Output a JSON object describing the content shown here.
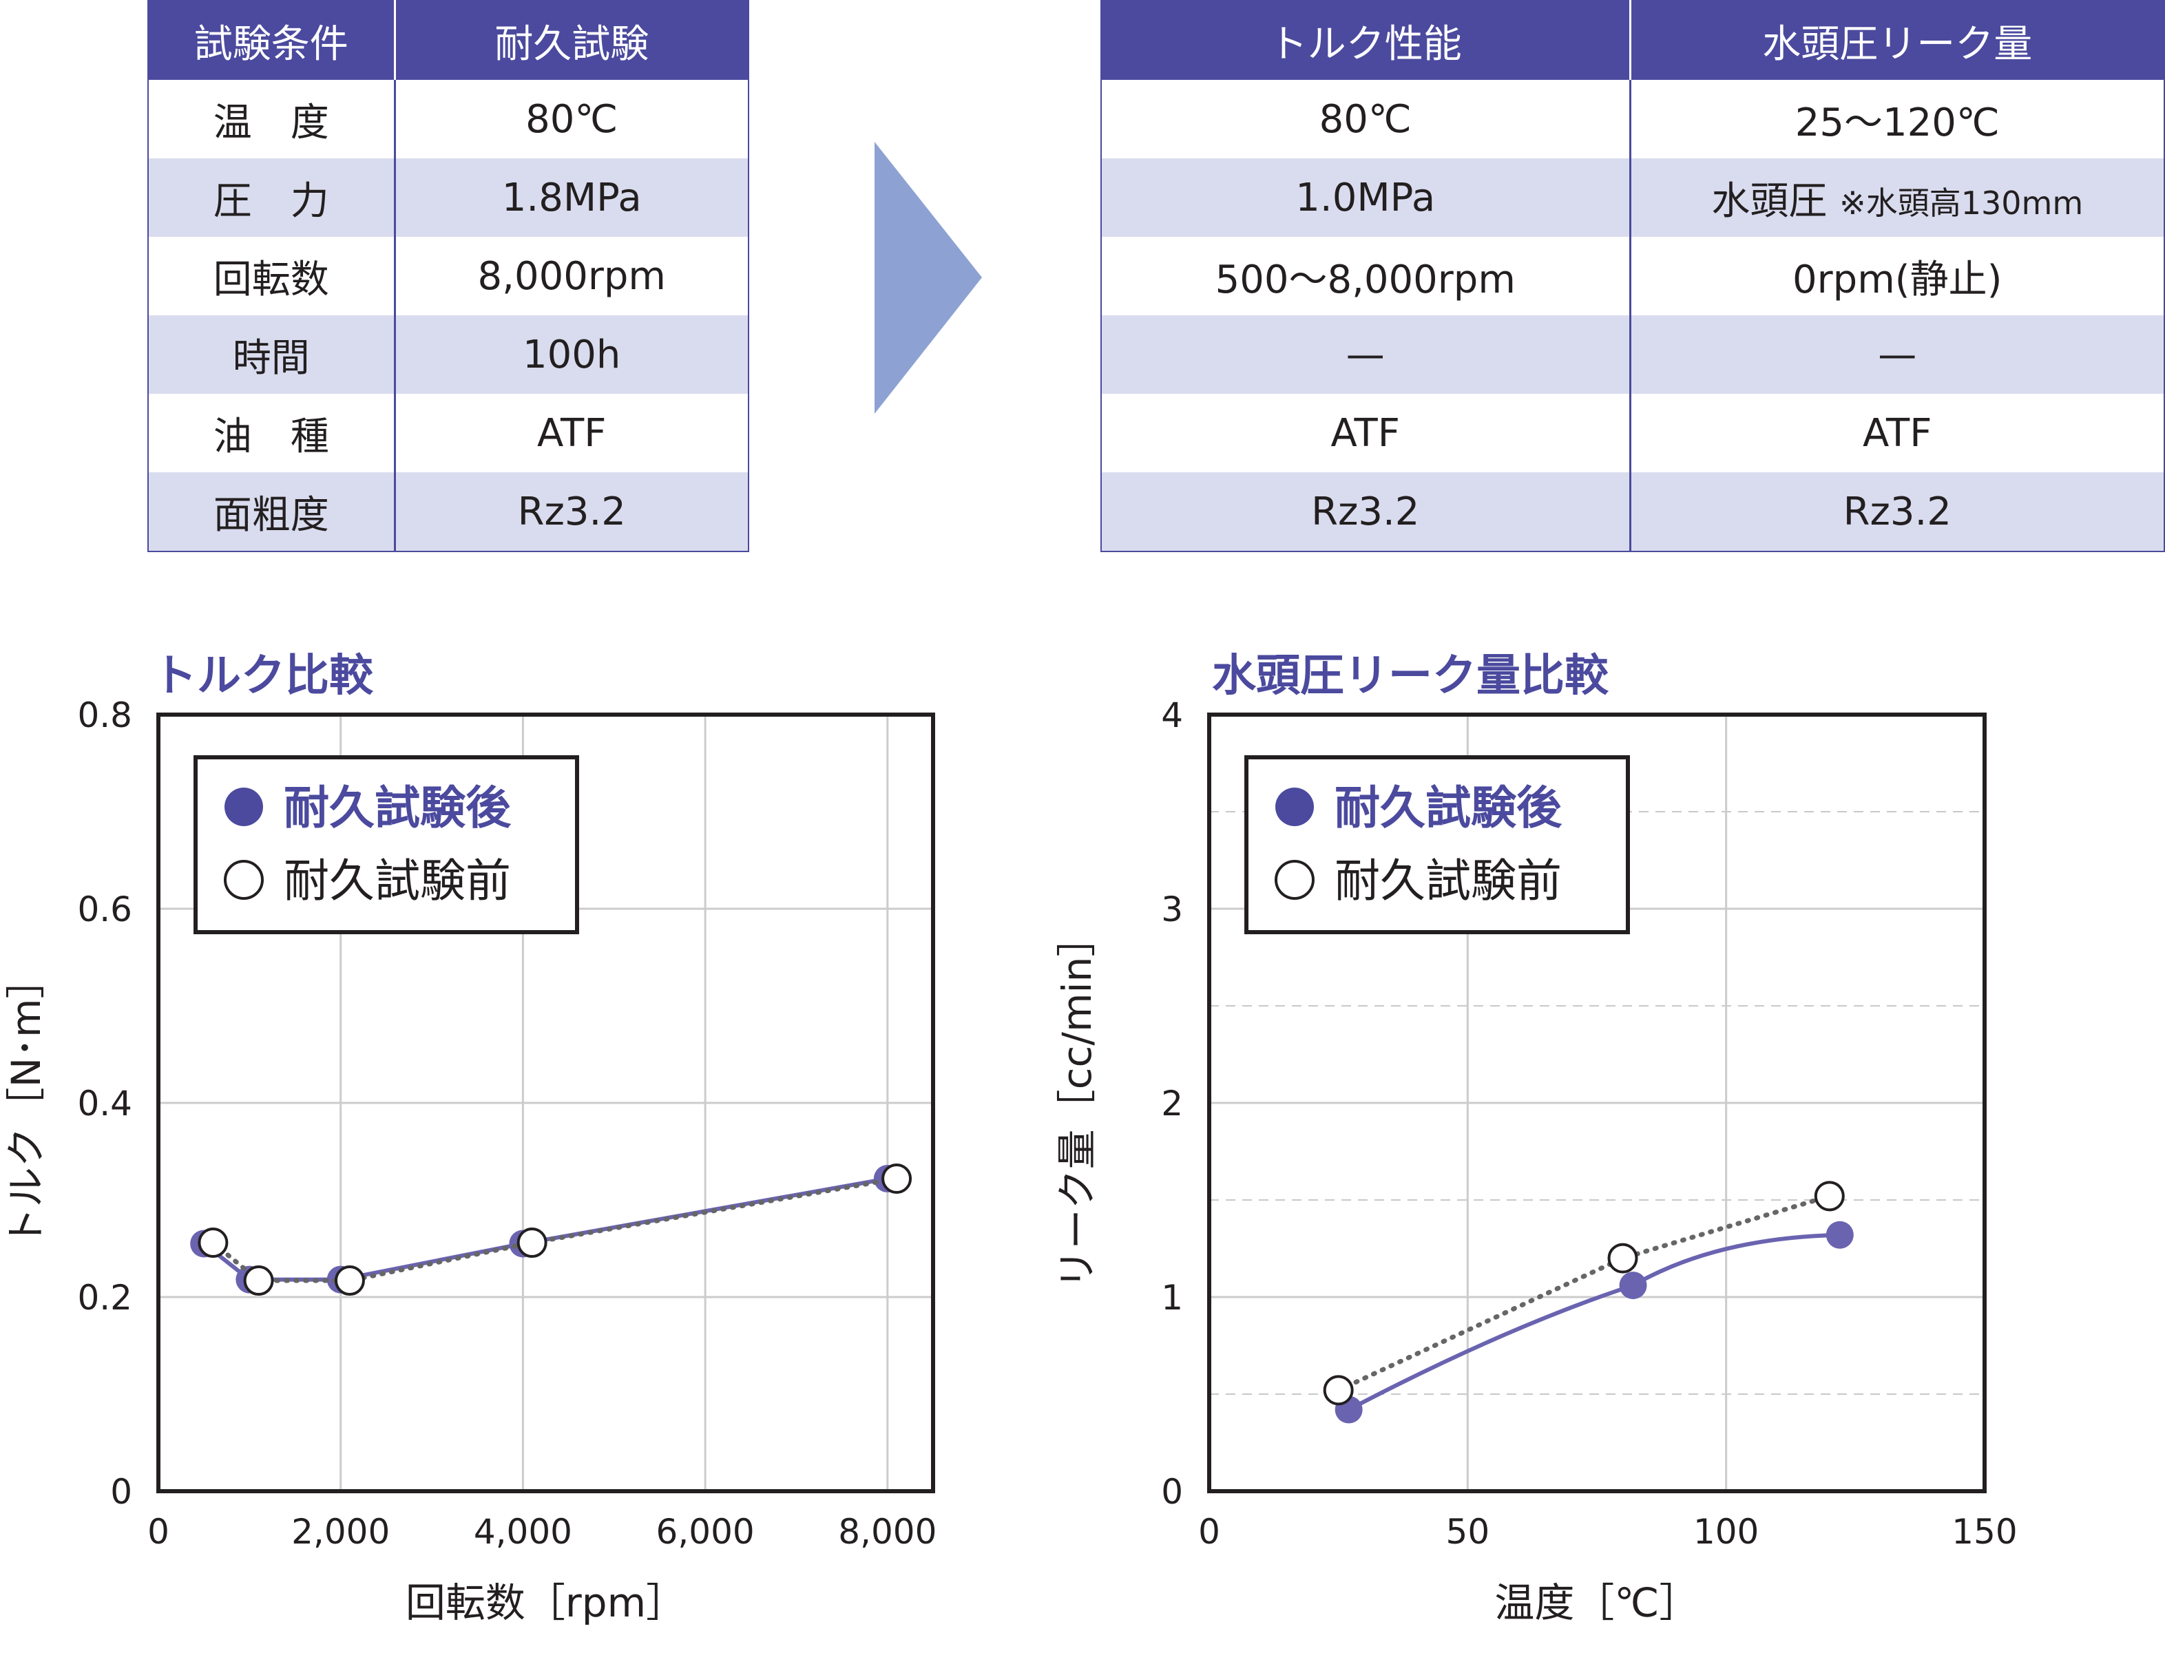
{
  "table_left": {
    "headers": [
      "試験条件",
      "耐久試験"
    ],
    "rows": [
      [
        "温　度",
        "80℃"
      ],
      [
        "圧　力",
        "1.8MPa"
      ],
      [
        "回転数",
        "8,000rpm"
      ],
      [
        "時間",
        "100h"
      ],
      [
        "油　種",
        "ATF"
      ],
      [
        "面粗度",
        "Rz3.2"
      ]
    ]
  },
  "table_right": {
    "headers": [
      "トルク性能",
      "水頭圧リーク量"
    ],
    "rows": [
      [
        "80℃",
        "25～120℃"
      ],
      [
        "1.0MPa",
        "水頭圧"
      ],
      [
        "500～8,000rpm",
        "0rpm(静止)"
      ],
      [
        "—",
        "—"
      ],
      [
        "ATF",
        "ATF"
      ],
      [
        "Rz3.2",
        "Rz3.2"
      ]
    ],
    "note": "※水頭高130mm"
  },
  "colors": {
    "accent": "#4b4a9e",
    "row_alt": "#d9dcee",
    "arrow": "#8da2d2",
    "after_series": "#6a63b0",
    "before_series": "#666666"
  },
  "chart_data": [
    {
      "type": "line",
      "title": "トルク比較",
      "xlabel": "回転数［rpm］",
      "ylabel": "トルク［N･m］",
      "xlim": [
        0,
        8500
      ],
      "ylim": [
        0,
        0.8
      ],
      "xticks": [
        0,
        2000,
        4000,
        6000,
        8000
      ],
      "xtick_labels": [
        "0",
        "2,000",
        "4,000",
        "6,000",
        "8,000"
      ],
      "yticks": [
        0,
        0.2,
        0.4,
        0.6,
        0.8
      ],
      "ytick_labels": [
        "0",
        "0.2",
        "0.4",
        "0.6",
        "0.8"
      ],
      "grid": "major",
      "legend": "top-left",
      "series": [
        {
          "name": "耐久試験後",
          "marker": "filled",
          "line": "solid",
          "x": [
            500,
            1000,
            2000,
            4000,
            8000
          ],
          "y": [
            0.255,
            0.218,
            0.218,
            0.255,
            0.322
          ]
        },
        {
          "name": "耐久試験前",
          "marker": "open",
          "line": "dotted",
          "x": [
            600,
            1100,
            2100,
            4100,
            8100
          ],
          "y": [
            0.256,
            0.217,
            0.217,
            0.256,
            0.322
          ]
        }
      ]
    },
    {
      "type": "line",
      "title": "水頭圧リーク量比較",
      "xlabel": "温度［℃］",
      "ylabel": "リーク量［cc/min］",
      "xlim": [
        0,
        150
      ],
      "ylim": [
        0,
        4
      ],
      "xticks": [
        0,
        50,
        100,
        150
      ],
      "xtick_labels": [
        "0",
        "50",
        "100",
        "150"
      ],
      "yticks": [
        0,
        1,
        2,
        3,
        4
      ],
      "ytick_labels": [
        "0",
        "1",
        "2",
        "3",
        "4"
      ],
      "minor_yticks": [
        0.5,
        1.5,
        2.5,
        3.5
      ],
      "grid": "major+minor-dashed",
      "legend": "top-left",
      "series": [
        {
          "name": "耐久試験後",
          "marker": "filled",
          "line": "solid-smooth",
          "x": [
            27,
            82,
            122
          ],
          "y": [
            0.42,
            1.06,
            1.32
          ]
        },
        {
          "name": "耐久試験前",
          "marker": "open",
          "line": "dotted",
          "x": [
            25,
            80,
            120
          ],
          "y": [
            0.52,
            1.2,
            1.52
          ]
        }
      ]
    }
  ]
}
